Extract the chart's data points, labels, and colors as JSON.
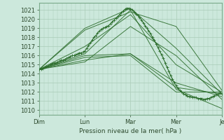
{
  "xlabel": "Pression niveau de la mer( hPa )",
  "ylim": [
    1009.5,
    1021.8
  ],
  "xlim": [
    0,
    200
  ],
  "yticks": [
    1010,
    1011,
    1012,
    1013,
    1014,
    1015,
    1016,
    1017,
    1018,
    1019,
    1020,
    1021
  ],
  "bg_color": "#cce8dc",
  "grid_color": "#aaccb8",
  "line_color": "#2d6e2d",
  "day_labels": [
    "Dim",
    "Lun",
    "Mar",
    "Mer",
    "Je"
  ],
  "day_positions": [
    0,
    50,
    100,
    150,
    200
  ],
  "lines": [
    {
      "x": [
        0,
        50,
        100,
        150,
        200
      ],
      "y": [
        1014.5,
        1019.0,
        1021.2,
        1016.8,
        1011.8
      ]
    },
    {
      "x": [
        0,
        50,
        100,
        150,
        200
      ],
      "y": [
        1014.5,
        1018.8,
        1020.8,
        1019.2,
        1012.2
      ]
    },
    {
      "x": [
        0,
        50,
        100,
        150,
        200
      ],
      "y": [
        1014.5,
        1016.2,
        1021.0,
        1012.3,
        1010.2
      ]
    },
    {
      "x": [
        0,
        50,
        100,
        150,
        200
      ],
      "y": [
        1014.5,
        1016.0,
        1016.2,
        1012.5,
        1011.8
      ]
    },
    {
      "x": [
        0,
        50,
        100,
        150,
        200
      ],
      "y": [
        1014.5,
        1015.8,
        1016.0,
        1012.0,
        1012.0
      ]
    },
    {
      "x": [
        0,
        50,
        100,
        150,
        200
      ],
      "y": [
        1014.5,
        1015.5,
        1016.2,
        1013.0,
        1011.5
      ]
    },
    {
      "x": [
        0,
        50,
        100,
        150,
        200
      ],
      "y": [
        1014.5,
        1015.3,
        1019.2,
        1016.0,
        1011.2
      ]
    },
    {
      "x": [
        0,
        50,
        100,
        150,
        200
      ],
      "y": [
        1014.5,
        1017.0,
        1020.5,
        1015.0,
        1012.0
      ]
    }
  ],
  "detailed_line_x": [
    0,
    2,
    4,
    6,
    8,
    10,
    12,
    14,
    16,
    18,
    20,
    22,
    24,
    26,
    28,
    30,
    32,
    34,
    36,
    38,
    40,
    42,
    44,
    46,
    48,
    50,
    52,
    54,
    56,
    58,
    60,
    62,
    64,
    66,
    68,
    70,
    72,
    74,
    76,
    78,
    80,
    82,
    84,
    86,
    88,
    90,
    92,
    94,
    96,
    98,
    100,
    102,
    104,
    106,
    108,
    110,
    112,
    114,
    116,
    118,
    120,
    122,
    124,
    126,
    128,
    130,
    132,
    134,
    136,
    138,
    140,
    142,
    144,
    146,
    148,
    150,
    152,
    154,
    156,
    158,
    160,
    162,
    164,
    166,
    168,
    170,
    172,
    174,
    176,
    178,
    180,
    182,
    184,
    186,
    188,
    190,
    192,
    194,
    196,
    198,
    200
  ],
  "detailed_line_y": [
    1014.5,
    1014.5,
    1014.6,
    1014.7,
    1014.8,
    1014.9,
    1015.0,
    1015.1,
    1015.2,
    1015.2,
    1015.3,
    1015.4,
    1015.5,
    1015.5,
    1015.6,
    1015.7,
    1015.8,
    1015.9,
    1016.0,
    1016.0,
    1016.1,
    1016.2,
    1016.3,
    1016.3,
    1016.4,
    1016.5,
    1016.8,
    1017.1,
    1017.4,
    1017.7,
    1018.0,
    1018.2,
    1018.5,
    1018.7,
    1018.9,
    1019.0,
    1019.1,
    1019.2,
    1019.3,
    1019.5,
    1019.7,
    1019.9,
    1020.1,
    1020.3,
    1020.5,
    1020.7,
    1020.9,
    1021.1,
    1021.2,
    1021.2,
    1021.1,
    1021.0,
    1020.8,
    1020.6,
    1020.4,
    1020.2,
    1019.9,
    1019.6,
    1019.3,
    1019.0,
    1018.7,
    1018.4,
    1018.0,
    1017.7,
    1017.3,
    1016.9,
    1016.5,
    1016.1,
    1015.7,
    1015.2,
    1014.7,
    1014.3,
    1013.8,
    1013.4,
    1013.0,
    1012.7,
    1012.4,
    1012.2,
    1012.0,
    1011.8,
    1011.7,
    1011.6,
    1011.5,
    1011.5,
    1011.4,
    1011.4,
    1011.4,
    1011.3,
    1011.3,
    1011.3,
    1011.2,
    1011.2,
    1011.3,
    1011.3,
    1011.4,
    1011.5,
    1011.6,
    1011.7,
    1011.8,
    1011.9,
    1011.8
  ]
}
